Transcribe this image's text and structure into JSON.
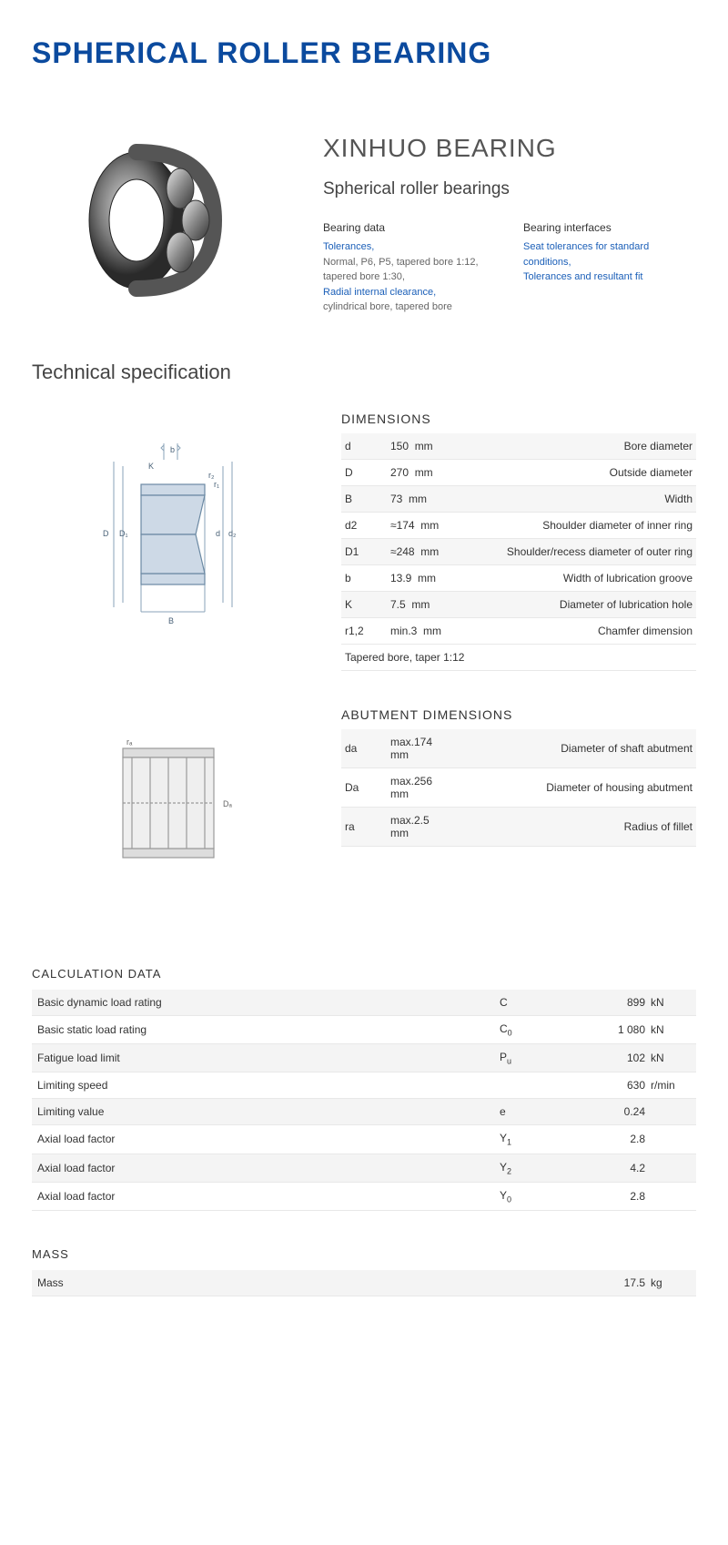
{
  "title": "SPHERICAL ROLLER BEARING",
  "brand": "XINHUO BEARING",
  "subtitle": "Spherical roller bearings",
  "colors": {
    "title": "#0b4a9e",
    "link": "#1b5fb8",
    "text": "#333333",
    "muted": "#666666",
    "row_alt": "#f6f6f6",
    "border": "#e8e8e8",
    "diagram_stroke": "#8aa3b8",
    "diagram_fill": "#cdd9e6"
  },
  "info_left": {
    "head": "Bearing data",
    "link1": "Tolerances,",
    "plain1": "Normal, P6, P5, tapered bore 1:12, tapered bore 1:30,",
    "link2": "Radial internal clearance,",
    "plain2": "cylindrical bore, tapered bore"
  },
  "info_right": {
    "head": "Bearing interfaces",
    "link1": "Seat tolerances for standard conditions,",
    "link2": "Tolerances and resultant fit"
  },
  "tech_spec_heading": "Technical specification",
  "dimensions": {
    "heading": "DIMENSIONS",
    "rows": [
      {
        "sym": "d",
        "val": "150",
        "unit": "mm",
        "desc": "Bore diameter"
      },
      {
        "sym": "D",
        "val": "270",
        "unit": "mm",
        "desc": "Outside diameter"
      },
      {
        "sym": "B",
        "val": "73",
        "unit": "mm",
        "desc": "Width"
      },
      {
        "sym": "d2",
        "val": "≈174",
        "unit": "mm",
        "desc": "Shoulder diameter of inner ring"
      },
      {
        "sym": "D1",
        "val": "≈248",
        "unit": "mm",
        "desc": "Shoulder/recess diameter of outer ring"
      },
      {
        "sym": "b",
        "val": "13.9",
        "unit": "mm",
        "desc": "Width of lubrication groove"
      },
      {
        "sym": "K",
        "val": "7.5",
        "unit": "mm",
        "desc": "Diameter of lubrication hole"
      },
      {
        "sym": "r1,2",
        "val": "min.3",
        "unit": "mm",
        "desc": "Chamfer dimension"
      }
    ],
    "note": "Tapered bore, taper 1:12"
  },
  "abutment": {
    "heading": "ABUTMENT DIMENSIONS",
    "rows": [
      {
        "sym": "da",
        "val": "max.174",
        "unit": "mm",
        "desc": "Diameter of shaft abutment"
      },
      {
        "sym": "Da",
        "val": "max.256",
        "unit": "mm",
        "desc": "Diameter of housing abutment"
      },
      {
        "sym": "ra",
        "val": "max.2.5",
        "unit": "mm",
        "desc": "Radius of fillet"
      }
    ]
  },
  "calculation": {
    "heading": "CALCULATION DATA",
    "rows": [
      {
        "label": "Basic dynamic load rating",
        "sym": "C",
        "sub": "",
        "val": "899",
        "unit": "kN"
      },
      {
        "label": "Basic static load rating",
        "sym": "C",
        "sub": "0",
        "val": "1 080",
        "unit": "kN"
      },
      {
        "label": "Fatigue load limit",
        "sym": "P",
        "sub": "u",
        "val": "102",
        "unit": "kN"
      },
      {
        "label": "Limiting speed",
        "sym": "",
        "sub": "",
        "val": "630",
        "unit": "r/min"
      },
      {
        "label": "Limiting value",
        "sym": "e",
        "sub": "",
        "val": "0.24",
        "unit": ""
      },
      {
        "label": "Axial load factor",
        "sym": "Y",
        "sub": "1",
        "val": "2.8",
        "unit": ""
      },
      {
        "label": "Axial load factor",
        "sym": "Y",
        "sub": "2",
        "val": "4.2",
        "unit": ""
      },
      {
        "label": "Axial load factor",
        "sym": "Y",
        "sub": "0",
        "val": "2.8",
        "unit": ""
      }
    ]
  },
  "mass": {
    "heading": "MASS",
    "label": "Mass",
    "value": "17.5",
    "unit": "kg"
  }
}
